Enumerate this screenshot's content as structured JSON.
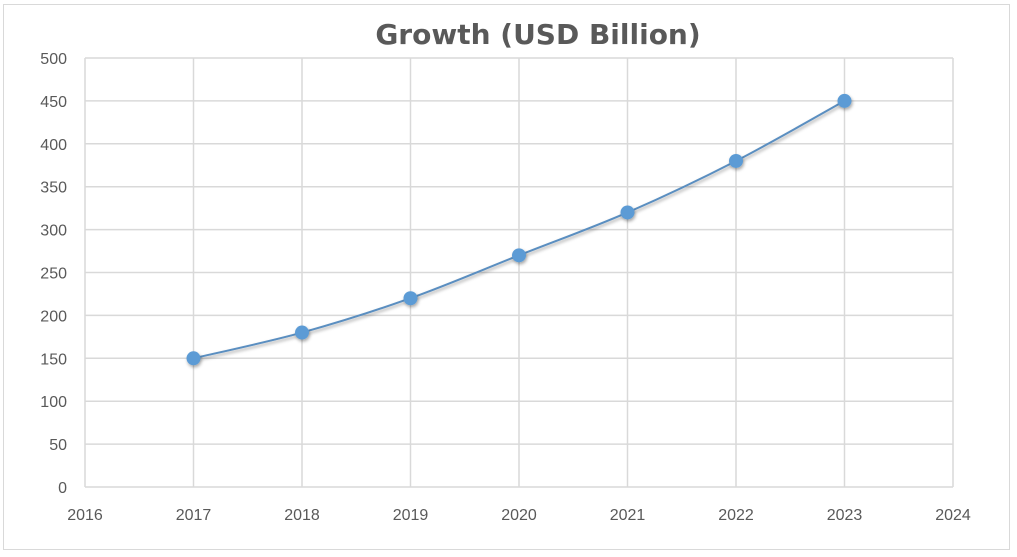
{
  "chart_data": {
    "type": "scatter",
    "title": "Growth (USD Billion)",
    "xlabel": "",
    "ylabel": "",
    "xlim": [
      2016,
      2024
    ],
    "ylim": [
      0,
      500
    ],
    "x_ticks": [
      2016,
      2017,
      2018,
      2019,
      2020,
      2021,
      2022,
      2023,
      2024
    ],
    "y_ticks": [
      0,
      50,
      100,
      150,
      200,
      250,
      300,
      350,
      400,
      450,
      500
    ],
    "grid": true,
    "legend": "none",
    "line_style": "smooth",
    "series": [
      {
        "x": [
          2017,
          2018,
          2019,
          2020,
          2021,
          2022,
          2023
        ],
        "y": [
          150,
          180,
          220,
          270,
          320,
          380,
          450
        ],
        "line_color": "#5a8ec0",
        "marker_color": "#5b9bd5"
      }
    ]
  }
}
